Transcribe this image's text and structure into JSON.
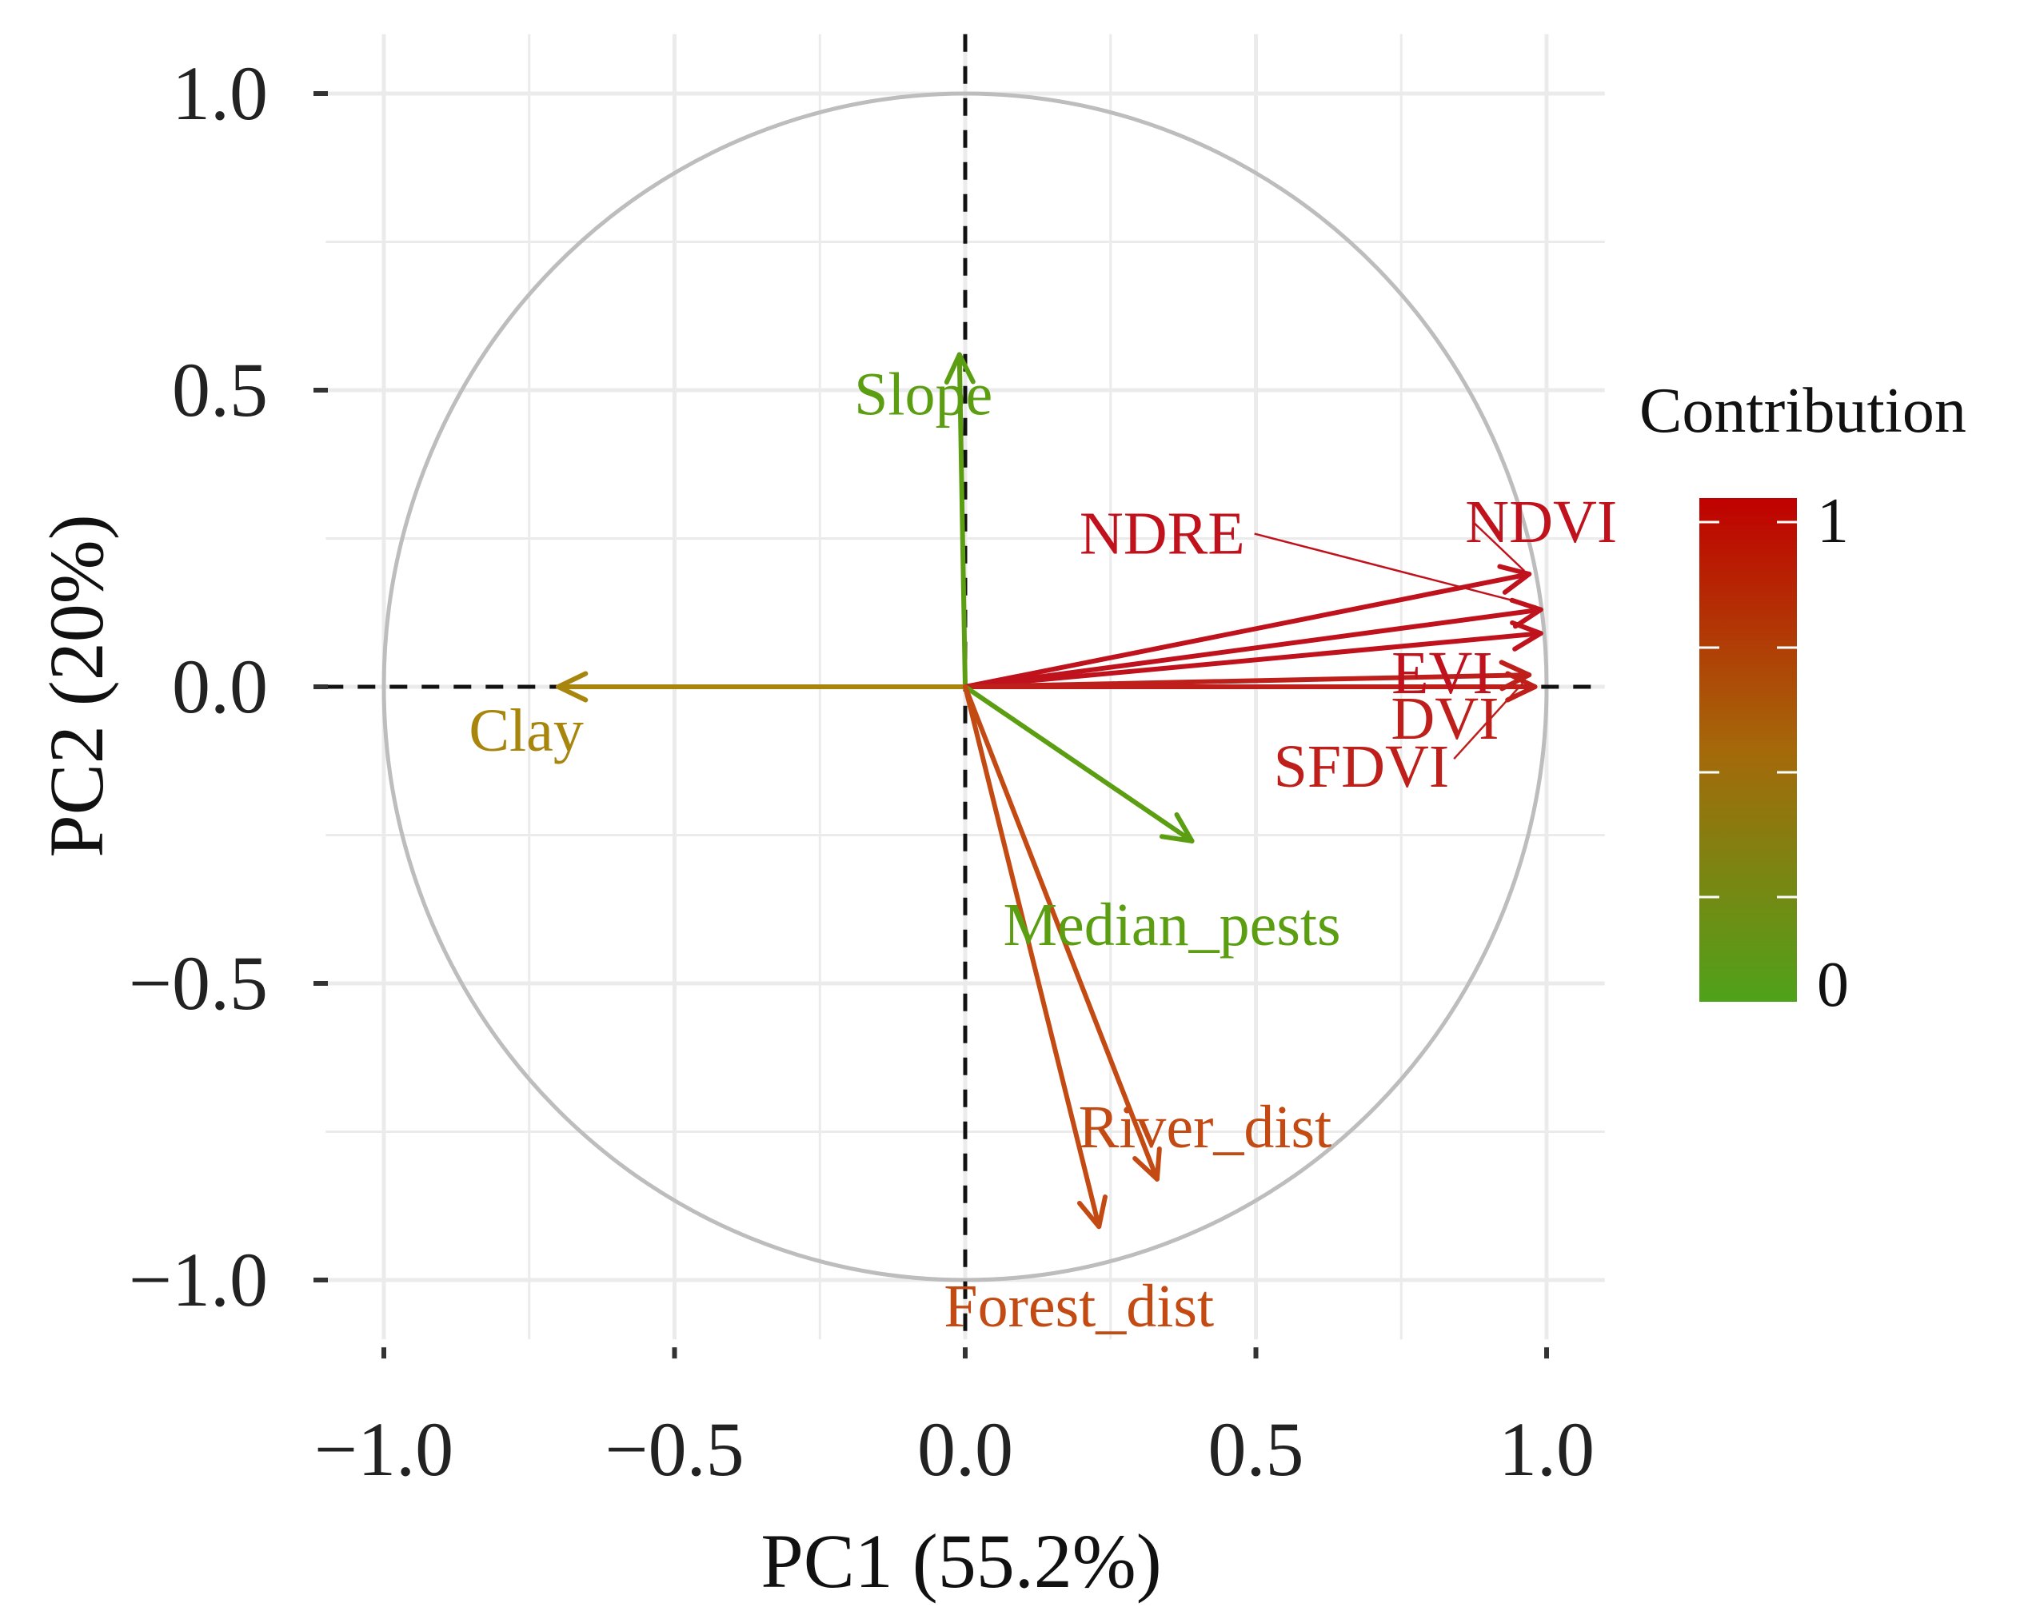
{
  "chart_data": {
    "type": "pca-variable-correlation-circle",
    "xlabel": "PC1 (55.2%)",
    "ylabel": "PC2 (20%)",
    "xlim": [
      -1.1,
      1.1
    ],
    "ylim": [
      -1.1,
      1.1
    ],
    "x_ticks": [
      -1.0,
      -0.5,
      0.0,
      0.5,
      1.0
    ],
    "y_ticks": [
      -1.0,
      -0.5,
      0.0,
      0.5,
      1.0
    ],
    "x_tick_labels": [
      "−1.0",
      "−0.5",
      "0.0",
      "0.5",
      "1.0"
    ],
    "y_tick_labels": [
      "−1.0",
      "−0.5",
      "0.0",
      "0.5",
      "1.0"
    ],
    "grid": true,
    "unit_circle": true,
    "legend": {
      "title": "Contribution",
      "type": "colorbar",
      "min_label": "0",
      "max_label": "1",
      "low_color": "#4fa21a",
      "mid_color": "#a5690a",
      "high_color": "#c00000",
      "placement": "right"
    },
    "variables": [
      {
        "name": "Slope",
        "x": -0.01,
        "y": 0.56,
        "contribution": 0.0,
        "color": "#5c9e12"
      },
      {
        "name": "NDVI",
        "x": 0.97,
        "y": 0.19,
        "contribution": 1.0,
        "color": "#c0121c"
      },
      {
        "name": "NDRE",
        "x": 0.99,
        "y": 0.13,
        "contribution": 0.98,
        "color": "#c0121c"
      },
      {
        "name": "EVI",
        "x": 0.99,
        "y": 0.09,
        "contribution": 0.98,
        "color": "#c0121c"
      },
      {
        "name": "DVI",
        "x": 0.98,
        "y": 0.0,
        "contribution": 0.95,
        "color": "#bf1f1a"
      },
      {
        "name": "SFDVI",
        "x": 0.97,
        "y": 0.02,
        "contribution": 0.95,
        "color": "#bf1f1a"
      },
      {
        "name": "Clay",
        "x": -0.7,
        "y": 0.0,
        "contribution": 0.45,
        "color": "#a8860e"
      },
      {
        "name": "Median_pests",
        "x": 0.39,
        "y": -0.26,
        "contribution": 0.05,
        "color": "#5c9e12"
      },
      {
        "name": "River_dist",
        "x": 0.33,
        "y": -0.83,
        "contribution": 0.82,
        "color": "#c34a12"
      },
      {
        "name": "Forest_dist",
        "x": 0.23,
        "y": -0.91,
        "contribution": 0.82,
        "color": "#c34a12"
      }
    ]
  }
}
